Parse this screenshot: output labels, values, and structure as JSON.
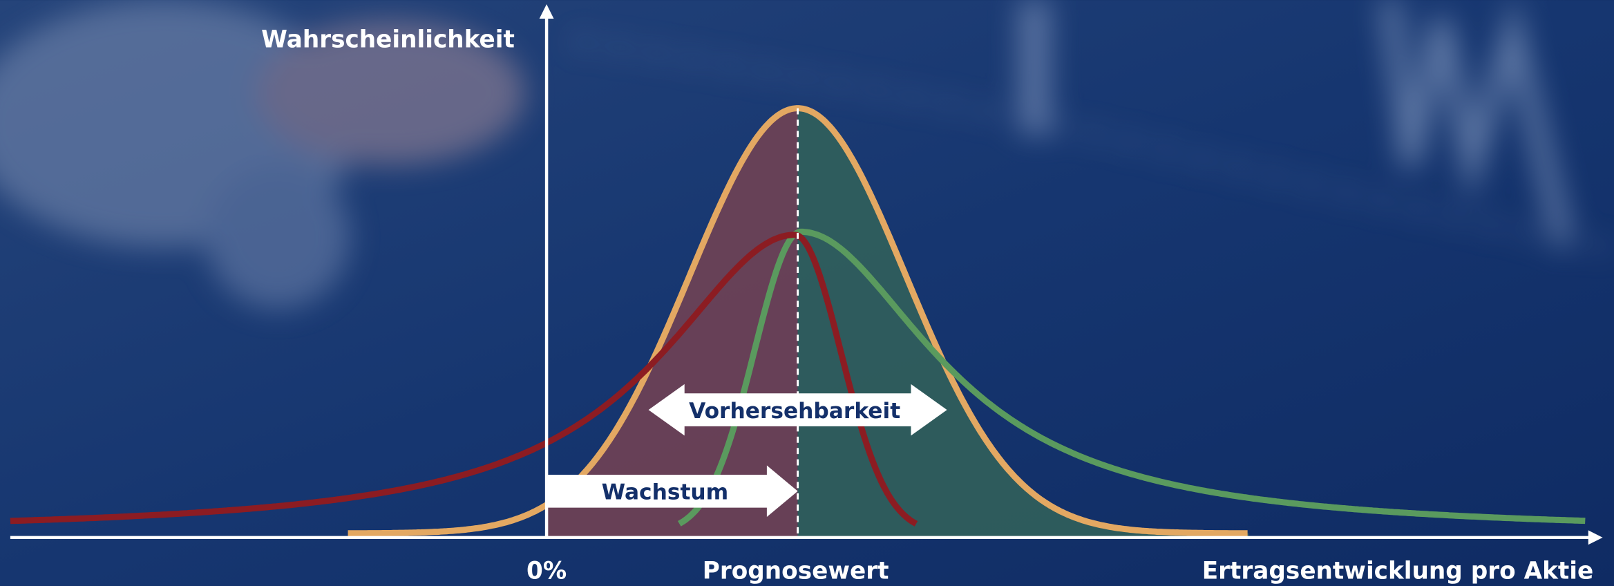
{
  "y_axis_label": "Wahrscheinlichkeit",
  "x_axis_labels": {
    "zero": "0%",
    "forecast": "Prognosewert",
    "axis_title": "Ertragsentwicklung pro Aktie"
  },
  "arrows": {
    "predictability": "Vorhersehbarkeit",
    "growth": "Wachstum"
  }
}
